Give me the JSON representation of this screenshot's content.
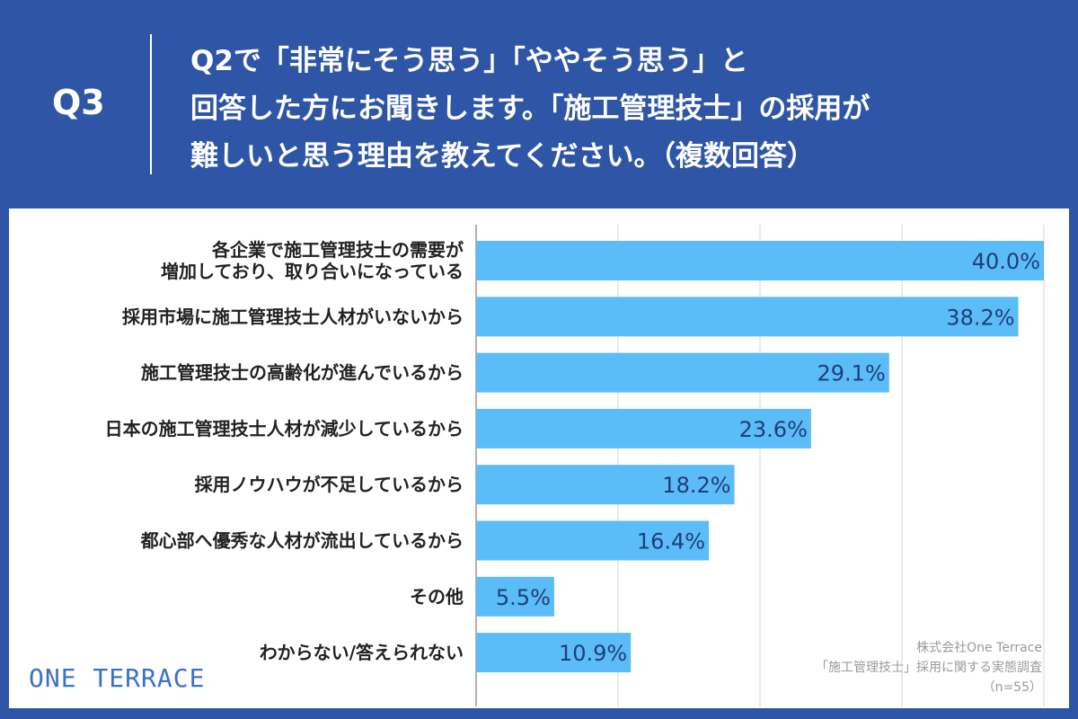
{
  "header": {
    "q_number": "Q3",
    "lines": [
      " Q2で「非常にそう思う」「ややそう思う」と",
      "回答した方にお聞きします。「施工管理技士」の採用が",
      "難しいと思う理由を教えてください。（複数回答）"
    ]
  },
  "colors": {
    "background": "#2f56a6",
    "bar": "#5bbcf7",
    "value_text": "#1d3f7a",
    "logo": "#3b72c7"
  },
  "logo": {
    "text": "ONE TERRACE"
  },
  "credit": {
    "lines": [
      "株式会社One Terrace",
      "「施工管理技士」採用に関する実態調査",
      "（n=55）"
    ]
  },
  "chart_data": {
    "type": "bar",
    "orientation": "horizontal",
    "categories": [
      [
        "各企業で施工管理技士の需要が",
        "増加しており、取り合いになっている"
      ],
      [
        "採用市場に施工管理技士人材がいないから"
      ],
      [
        "施工管理技士の高齢化が進んでいるから"
      ],
      [
        "日本の施工管理技士人材が減少しているから"
      ],
      [
        "採用ノウハウが不足しているから"
      ],
      [
        "都心部へ優秀な人材が流出しているから"
      ],
      [
        "その他"
      ],
      [
        "わからない/答えられない"
      ]
    ],
    "values": [
      40.0,
      38.2,
      29.1,
      23.6,
      18.2,
      16.4,
      5.5,
      10.9
    ],
    "value_labels": [
      "40.0%",
      "38.2%",
      "29.1%",
      "23.6%",
      "18.2%",
      "16.4%",
      "5.5%",
      "10.9%"
    ],
    "xlim": [
      0,
      40
    ],
    "grid": true,
    "gridlines": [
      0,
      10,
      20,
      30,
      40
    ]
  }
}
